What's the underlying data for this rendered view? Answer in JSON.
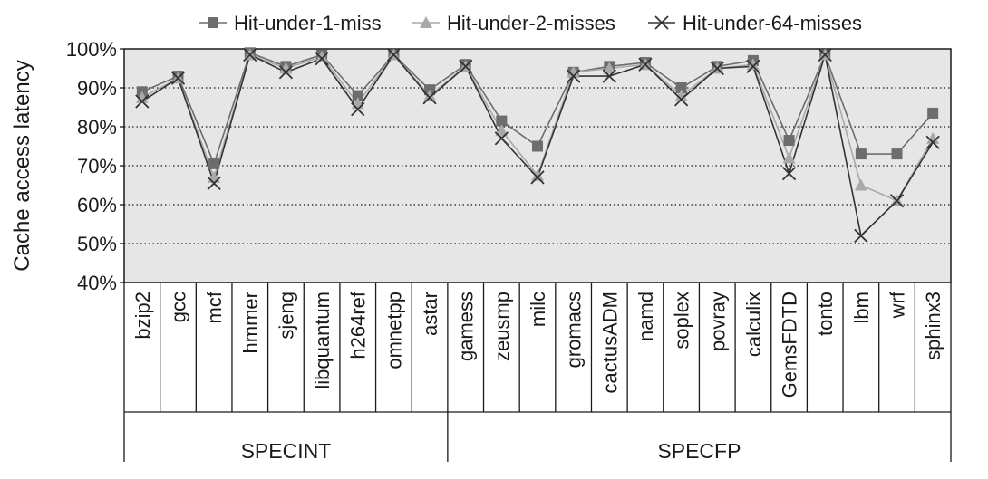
{
  "chart_data": {
    "type": "line",
    "ylabel": "Cache access latency",
    "ylim": [
      40,
      100
    ],
    "yticks": [
      "40%",
      "50%",
      "60%",
      "70%",
      "80%",
      "90%",
      "100%"
    ],
    "grid": "horizontal dotted",
    "legend_position": "top",
    "categories": [
      "bzip2",
      "gcc",
      "mcf",
      "hmmer",
      "sjeng",
      "libquantum",
      "h264ref",
      "omnetpp",
      "astar",
      "gamess",
      "zeusmp",
      "milc",
      "gromacs",
      "cactusADM",
      "namd",
      "soplex",
      "povray",
      "calculix",
      "GemsFDTD",
      "tonto",
      "lbm",
      "wrf",
      "sphinx3"
    ],
    "groups": [
      {
        "label": "SPECINT",
        "start": 0,
        "end": 8
      },
      {
        "label": "SPECFP",
        "start": 9,
        "end": 22
      }
    ],
    "series": [
      {
        "name": "Hit-under-1-miss",
        "marker": "square",
        "color": "#6d6d6d",
        "values": [
          89,
          93,
          70.5,
          99,
          95.5,
          98.5,
          88,
          98.5,
          89.5,
          96,
          81.5,
          75,
          94,
          95.5,
          96.5,
          90,
          95.5,
          97,
          76.5,
          98.5,
          73,
          73,
          83.5
        ]
      },
      {
        "name": "Hit-under-2-misses",
        "marker": "triangle",
        "color": "#a9a9a9",
        "values": [
          87.5,
          92.5,
          67,
          98.5,
          95,
          98,
          86,
          98.5,
          88,
          95.5,
          79,
          67.5,
          94,
          95,
          96,
          88,
          95,
          96,
          72,
          98.5,
          65,
          61,
          77
        ]
      },
      {
        "name": "Hit-under-64-misses",
        "marker": "x",
        "color": "#333333",
        "values": [
          86.5,
          92.5,
          65.5,
          98.5,
          94,
          97.5,
          84.5,
          98.5,
          87.5,
          95.5,
          77,
          67,
          93,
          93,
          96,
          87,
          95,
          95.5,
          68,
          98.5,
          52,
          61,
          76
        ]
      }
    ]
  }
}
